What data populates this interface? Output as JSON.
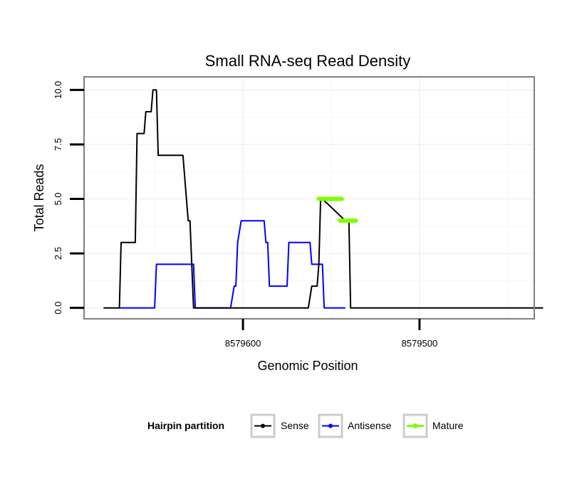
{
  "chart_data": {
    "type": "line",
    "title": "Small RNA-seq Read Density",
    "xlabel": "Genomic Position",
    "ylabel": "Total Reads",
    "xlim": [
      8579690,
      8579435
    ],
    "ylim": [
      -0.5,
      10.6
    ],
    "x_reversed": true,
    "x_ticks": [
      8579600,
      8579500
    ],
    "x_tick_labels": [
      "8579600",
      "8579500"
    ],
    "y_ticks": [
      0,
      2.5,
      5,
      7.5,
      10
    ],
    "y_tick_labels": [
      "0.0",
      "2.5",
      "5.0",
      "7.5",
      "10.0"
    ],
    "grid": true,
    "legend": {
      "title": "Hairpin partition",
      "position": "bottom",
      "entries": [
        "Sense",
        "Antisense",
        "Mature"
      ]
    },
    "colors": {
      "Sense": "#000000",
      "Antisense": "#0000ff",
      "Mature": "#7fff00"
    },
    "series": [
      {
        "name": "Sense",
        "x": [
          8579679,
          8579670,
          8579669,
          8579661,
          8579660,
          8579656,
          8579655,
          8579652,
          8579651,
          8579649,
          8579648,
          8579634,
          8579633,
          8579632,
          8579631,
          8579630,
          8579628,
          8579627,
          8579580,
          8579579,
          8579571,
          8579570,
          8579564,
          8579563,
          8579561,
          8579558,
          8579557,
          8579556,
          8579555,
          8579542,
          8579540,
          8579539,
          8579430
        ],
        "y": [
          0,
          0,
          3,
          3,
          8,
          8,
          9,
          9,
          10,
          10,
          7,
          7,
          6,
          5,
          4,
          4,
          0,
          0,
          0,
          0,
          0,
          0,
          0,
          0,
          1,
          1,
          2,
          5,
          5,
          4,
          4,
          0,
          0
        ]
      },
      {
        "name": "Antisense",
        "x": [
          8579670,
          8579650,
          8579649,
          8579628,
          8579627,
          8579608,
          8579607,
          8579605,
          8579604,
          8579603,
          8579601,
          8579588,
          8579587,
          8579586,
          8579585,
          8579581,
          8579580,
          8579575,
          8579574,
          8579562,
          8579561,
          8579555,
          8579554,
          8579542
        ],
        "y": [
          0,
          0,
          2,
          2,
          0,
          0,
          0,
          1,
          1,
          3,
          4,
          4,
          3,
          3,
          1,
          1,
          1,
          1,
          3,
          3,
          2,
          2,
          0,
          0
        ]
      },
      {
        "name": "Mature",
        "segments": [
          {
            "x": [
              8579557,
              8579544
            ],
            "y": [
              5,
              5
            ]
          },
          {
            "x": [
              8579545,
              8579536
            ],
            "y": [
              4,
              4
            ]
          }
        ]
      }
    ]
  }
}
